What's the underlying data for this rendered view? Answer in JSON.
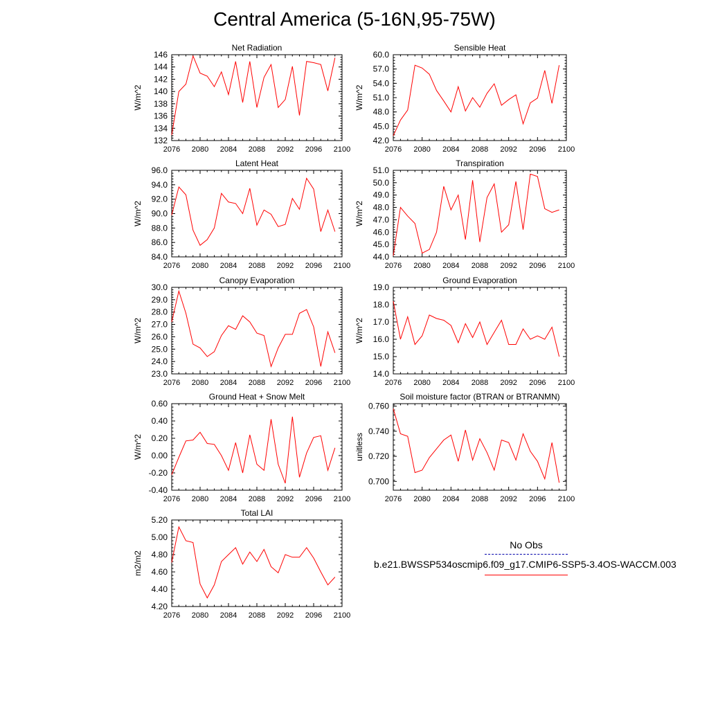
{
  "title": "Central America (5-16N,95-75W)",
  "colors": {
    "model_line": "#ff0000",
    "obs_line": "#0000aa",
    "axis": "#000000"
  },
  "legend": {
    "obs_label": "No Obs",
    "model_label": "b.e21.BWSSP534oscmip6.f09_g17.CMIP6-SSP5-3.4OS-WACCM.003"
  },
  "chart_data": [
    {
      "type": "line",
      "title": "Net Radiation",
      "ylabel": "W/m^2",
      "xlim": [
        2076,
        2100
      ],
      "ylim": [
        132,
        146
      ],
      "xticks": [
        2076,
        2080,
        2084,
        2088,
        2092,
        2096,
        2100
      ],
      "yticks": [
        "132",
        "134",
        "136",
        "138",
        "140",
        "142",
        "144",
        "146"
      ],
      "x": [
        2076,
        2077,
        2078,
        2079,
        2080,
        2081,
        2082,
        2083,
        2084,
        2085,
        2086,
        2087,
        2088,
        2089,
        2090,
        2091,
        2092,
        2093,
        2094,
        2095,
        2096,
        2097,
        2098,
        2099
      ],
      "series": [
        {
          "values": [
            132.9,
            140.0,
            141.2,
            145.8,
            143.0,
            142.5,
            140.8,
            143.2,
            139.5,
            144.9,
            138.2,
            144.9,
            137.4,
            142.3,
            144.4,
            137.4,
            138.7,
            144.1,
            136.1,
            144.9,
            144.7,
            144.4,
            140.1,
            145.5
          ]
        }
      ]
    },
    {
      "type": "line",
      "title": "Sensible Heat",
      "ylabel": "W/m^2",
      "xlim": [
        2076,
        2100
      ],
      "ylim": [
        42,
        60
      ],
      "xticks": [
        2076,
        2080,
        2084,
        2088,
        2092,
        2096,
        2100
      ],
      "yticks": [
        "42.0",
        "45.0",
        "48.0",
        "51.0",
        "54.0",
        "57.0",
        "60.0"
      ],
      "x": [
        2076,
        2077,
        2078,
        2079,
        2080,
        2081,
        2082,
        2083,
        2084,
        2085,
        2086,
        2087,
        2088,
        2089,
        2090,
        2091,
        2092,
        2093,
        2094,
        2095,
        2096,
        2097,
        2098,
        2099
      ],
      "series": [
        {
          "values": [
            43.0,
            46.3,
            48.4,
            57.8,
            57.2,
            55.9,
            52.5,
            50.3,
            48.0,
            53.3,
            48.2,
            51.0,
            49.0,
            51.9,
            53.9,
            49.4,
            50.6,
            51.6,
            45.5,
            49.9,
            50.9,
            56.7,
            49.8,
            57.8
          ]
        }
      ]
    },
    {
      "type": "line",
      "title": "Latent Heat",
      "ylabel": "W/m^2",
      "xlim": [
        2076,
        2100
      ],
      "ylim": [
        84,
        96
      ],
      "xticks": [
        2076,
        2080,
        2084,
        2088,
        2092,
        2096,
        2100
      ],
      "yticks": [
        "84.0",
        "86.0",
        "88.0",
        "90.0",
        "92.0",
        "94.0",
        "96.0"
      ],
      "x": [
        2076,
        2077,
        2078,
        2079,
        2080,
        2081,
        2082,
        2083,
        2084,
        2085,
        2086,
        2087,
        2088,
        2089,
        2090,
        2091,
        2092,
        2093,
        2094,
        2095,
        2096,
        2097,
        2098,
        2099
      ],
      "series": [
        {
          "values": [
            89.8,
            93.7,
            92.6,
            87.7,
            85.6,
            86.4,
            88.0,
            92.8,
            91.6,
            91.4,
            90.0,
            93.5,
            88.4,
            90.5,
            89.9,
            88.2,
            88.5,
            92.1,
            90.6,
            94.9,
            93.4,
            87.5,
            90.5,
            87.5
          ]
        }
      ]
    },
    {
      "type": "line",
      "title": "Transpiration",
      "ylabel": "W/m^2",
      "xlim": [
        2076,
        2100
      ],
      "ylim": [
        44,
        51
      ],
      "xticks": [
        2076,
        2080,
        2084,
        2088,
        2092,
        2096,
        2100
      ],
      "yticks": [
        "44.0",
        "45.0",
        "46.0",
        "47.0",
        "48.0",
        "49.0",
        "50.0",
        "51.0"
      ],
      "x": [
        2076,
        2077,
        2078,
        2079,
        2080,
        2081,
        2082,
        2083,
        2084,
        2085,
        2086,
        2087,
        2088,
        2089,
        2090,
        2091,
        2092,
        2093,
        2094,
        2095,
        2096,
        2097,
        2098,
        2099
      ],
      "series": [
        {
          "values": [
            44.1,
            48.0,
            47.3,
            46.7,
            44.3,
            44.6,
            46.0,
            49.7,
            47.8,
            49.0,
            45.4,
            50.2,
            45.2,
            48.8,
            49.9,
            46.0,
            46.6,
            50.1,
            46.2,
            50.7,
            50.5,
            47.9,
            47.6,
            47.8
          ]
        }
      ]
    },
    {
      "type": "line",
      "title": "Canopy Evaporation",
      "ylabel": "W/m^2",
      "xlim": [
        2076,
        2100
      ],
      "ylim": [
        23,
        30
      ],
      "xticks": [
        2076,
        2080,
        2084,
        2088,
        2092,
        2096,
        2100
      ],
      "yticks": [
        "23.0",
        "24.0",
        "25.0",
        "26.0",
        "27.0",
        "28.0",
        "29.0",
        "30.0"
      ],
      "x": [
        2076,
        2077,
        2078,
        2079,
        2080,
        2081,
        2082,
        2083,
        2084,
        2085,
        2086,
        2087,
        2088,
        2089,
        2090,
        2091,
        2092,
        2093,
        2094,
        2095,
        2096,
        2097,
        2098,
        2099
      ],
      "series": [
        {
          "values": [
            27.2,
            29.7,
            27.9,
            25.4,
            25.1,
            24.4,
            24.8,
            26.1,
            26.9,
            26.6,
            27.7,
            27.2,
            26.3,
            26.1,
            23.6,
            25.1,
            26.2,
            26.2,
            27.9,
            28.2,
            26.8,
            23.6,
            26.4,
            24.7
          ]
        }
      ]
    },
    {
      "type": "line",
      "title": "Ground Evaporation",
      "ylabel": "W/m^2",
      "xlim": [
        2076,
        2100
      ],
      "ylim": [
        14,
        19
      ],
      "xticks": [
        2076,
        2080,
        2084,
        2088,
        2092,
        2096,
        2100
      ],
      "yticks": [
        "14.0",
        "15.0",
        "16.0",
        "17.0",
        "18.0",
        "19.0"
      ],
      "x": [
        2076,
        2077,
        2078,
        2079,
        2080,
        2081,
        2082,
        2083,
        2084,
        2085,
        2086,
        2087,
        2088,
        2089,
        2090,
        2091,
        2092,
        2093,
        2094,
        2095,
        2096,
        2097,
        2098,
        2099
      ],
      "series": [
        {
          "values": [
            18.2,
            16.0,
            17.3,
            15.7,
            16.2,
            17.4,
            17.2,
            17.1,
            16.8,
            15.8,
            16.9,
            16.1,
            17.0,
            15.7,
            16.4,
            17.1,
            15.7,
            15.7,
            16.6,
            16.0,
            16.2,
            16.0,
            16.7,
            15.0
          ]
        }
      ]
    },
    {
      "type": "line",
      "title": "Ground Heat + Snow Melt",
      "ylabel": "W/m^2",
      "xlim": [
        2076,
        2100
      ],
      "ylim": [
        -0.4,
        0.6
      ],
      "xticks": [
        2076,
        2080,
        2084,
        2088,
        2092,
        2096,
        2100
      ],
      "yticks": [
        "-0.40",
        "-0.20",
        "0.00",
        "0.20",
        "0.40",
        "0.60"
      ],
      "x": [
        2076,
        2077,
        2078,
        2079,
        2080,
        2081,
        2082,
        2083,
        2084,
        2085,
        2086,
        2087,
        2088,
        2089,
        2090,
        2091,
        2092,
        2093,
        2094,
        2095,
        2096,
        2097,
        2098,
        2099
      ],
      "series": [
        {
          "values": [
            -0.22,
            -0.02,
            0.17,
            0.18,
            0.27,
            0.14,
            0.13,
            0.0,
            -0.17,
            0.15,
            -0.2,
            0.24,
            -0.1,
            -0.17,
            0.42,
            -0.1,
            -0.32,
            0.45,
            -0.25,
            0.03,
            0.21,
            0.23,
            -0.17,
            0.09
          ]
        }
      ]
    },
    {
      "type": "line",
      "title": "Soil moisture factor (BTRAN or BTRANMN)",
      "ylabel": "unitless",
      "xlim": [
        2076,
        2100
      ],
      "ylim": [
        0.693,
        0.762
      ],
      "xticks": [
        2076,
        2080,
        2084,
        2088,
        2092,
        2096,
        2100
      ],
      "yticks": [
        "0.700",
        "0.720",
        "0.740",
        "0.760"
      ],
      "ytick_values": [
        0.7,
        0.72,
        0.74,
        0.76
      ],
      "x": [
        2076,
        2077,
        2078,
        2079,
        2080,
        2081,
        2082,
        2083,
        2084,
        2085,
        2086,
        2087,
        2088,
        2089,
        2090,
        2091,
        2092,
        2093,
        2094,
        2095,
        2096,
        2097,
        2098,
        2099
      ],
      "series": [
        {
          "values": [
            0.758,
            0.738,
            0.736,
            0.707,
            0.709,
            0.719,
            0.726,
            0.733,
            0.737,
            0.716,
            0.741,
            0.717,
            0.734,
            0.723,
            0.709,
            0.733,
            0.731,
            0.717,
            0.738,
            0.724,
            0.716,
            0.702,
            0.731,
            0.699
          ]
        }
      ]
    },
    {
      "type": "line",
      "title": "Total LAI",
      "ylabel": "m2/m2",
      "xlim": [
        2076,
        2100
      ],
      "ylim": [
        4.2,
        5.2
      ],
      "xticks": [
        2076,
        2080,
        2084,
        2088,
        2092,
        2096,
        2100
      ],
      "yticks": [
        "4.20",
        "4.40",
        "4.60",
        "4.80",
        "5.00",
        "5.20"
      ],
      "x": [
        2076,
        2077,
        2078,
        2079,
        2080,
        2081,
        2082,
        2083,
        2084,
        2085,
        2086,
        2087,
        2088,
        2089,
        2090,
        2091,
        2092,
        2093,
        2094,
        2095,
        2096,
        2097,
        2098,
        2099
      ],
      "series": [
        {
          "values": [
            4.71,
            5.12,
            4.96,
            4.94,
            4.46,
            4.3,
            4.45,
            4.72,
            4.8,
            4.88,
            4.69,
            4.83,
            4.72,
            4.86,
            4.66,
            4.59,
            4.8,
            4.77,
            4.77,
            4.88,
            4.76,
            4.6,
            4.45,
            4.54
          ]
        }
      ]
    }
  ]
}
